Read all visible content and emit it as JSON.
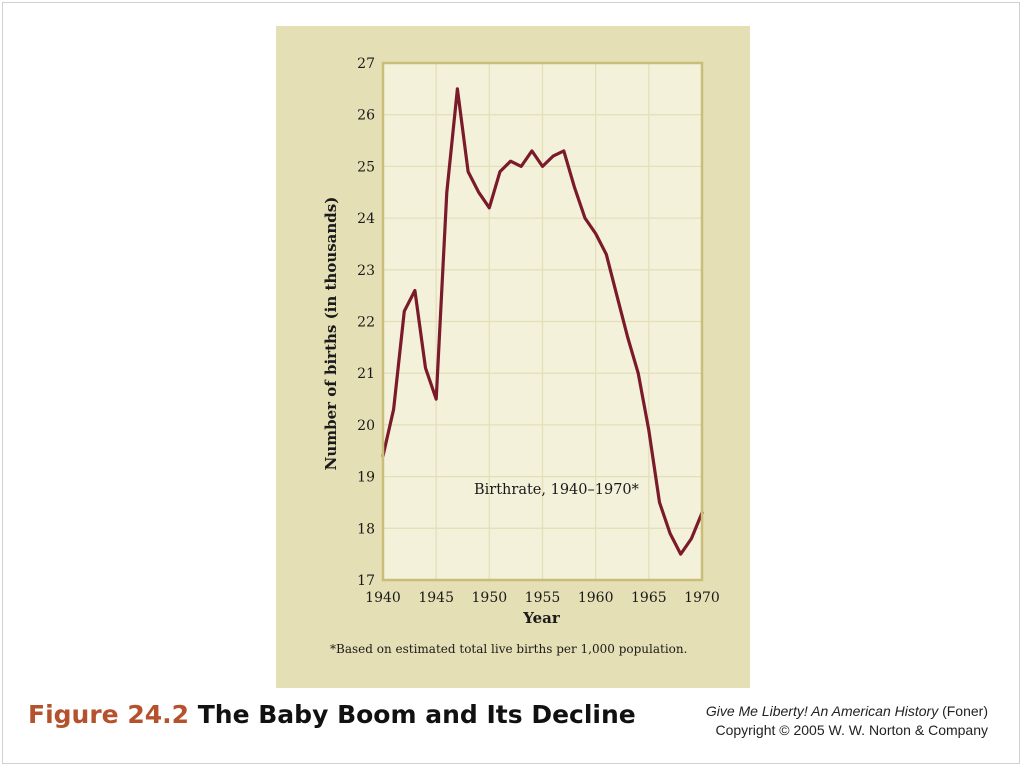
{
  "chart_data": {
    "type": "line",
    "title": "",
    "annotation": "Birthrate, 1940–1970*",
    "xlabel": "Year",
    "ylabel": "Number of births (in thousands)",
    "footnote": "*Based on estimated total live births per 1,000 population.",
    "xlim": [
      1940,
      1970
    ],
    "ylim": [
      17,
      27
    ],
    "x_ticks": [
      1940,
      1945,
      1950,
      1955,
      1960,
      1965,
      1970
    ],
    "y_ticks": [
      17,
      18,
      19,
      20,
      21,
      22,
      23,
      24,
      25,
      26,
      27
    ],
    "grid": true,
    "series": [
      {
        "color": "#7a1a2a",
        "x": [
          1940,
          1941,
          1942,
          1943,
          1944,
          1945,
          1946,
          1947,
          1948,
          1949,
          1950,
          1951,
          1952,
          1953,
          1954,
          1955,
          1956,
          1957,
          1958,
          1959,
          1960,
          1961,
          1962,
          1963,
          1964,
          1965,
          1966,
          1967,
          1968,
          1969,
          1970
        ],
        "y": [
          19.4,
          20.3,
          22.2,
          22.6,
          21.1,
          20.5,
          24.5,
          26.5,
          24.9,
          24.5,
          24.2,
          24.9,
          25.1,
          25.0,
          25.3,
          25.0,
          25.2,
          25.3,
          24.6,
          24.0,
          23.7,
          23.3,
          22.5,
          21.7,
          21.0,
          19.9,
          18.5,
          17.9,
          17.5,
          17.8,
          18.3
        ]
      }
    ]
  },
  "caption": {
    "figure_label": "Figure 24.2",
    "figure_title": "The Baby Boom and Its Decline"
  },
  "credit": {
    "book_title": "Give Me Liberty! An American History",
    "author": "(Foner)",
    "copyright": "Copyright © 2005 W. W. Norton & Company"
  },
  "colors": {
    "panel_bg": "#e4dfb5",
    "plot_bg": "#f4f1da",
    "grid": "#e4dfbb",
    "frame": "#c9bd79",
    "line": "#7a1a2a",
    "figure_label": "#b5522d"
  }
}
